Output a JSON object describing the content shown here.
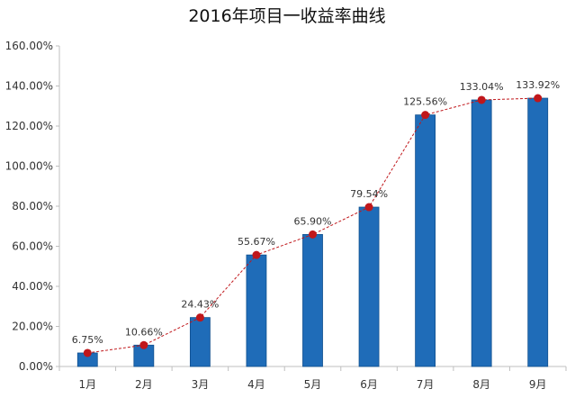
{
  "chart_data": {
    "type": "bar",
    "title": "2016年项目一收益率曲线",
    "categories": [
      "1月",
      "2月",
      "3月",
      "4月",
      "5月",
      "6月",
      "7月",
      "8月",
      "9月"
    ],
    "values": [
      6.75,
      10.66,
      24.43,
      55.67,
      65.9,
      79.54,
      125.56,
      133.04,
      133.92
    ],
    "data_labels": [
      "6.75%",
      "10.66%",
      "24.43%",
      "55.67%",
      "65.90%",
      "79.54%",
      "125.56%",
      "133.04%",
      "133.92%"
    ],
    "y_ticks": [
      "0.00%",
      "20.00%",
      "40.00%",
      "60.00%",
      "80.00%",
      "100.00%",
      "120.00%",
      "140.00%",
      "160.00%"
    ],
    "ylim": [
      0,
      160
    ],
    "xlabel": "",
    "ylabel": "",
    "grid": false,
    "overlay_line": "dashed line with markers through bar tops",
    "colors": {
      "bar": "#1f6cb8",
      "bar_edge": "#0f4f8e",
      "line": "#c0171b",
      "marker": "#c0171b",
      "axis": "#bfbfbf"
    }
  }
}
